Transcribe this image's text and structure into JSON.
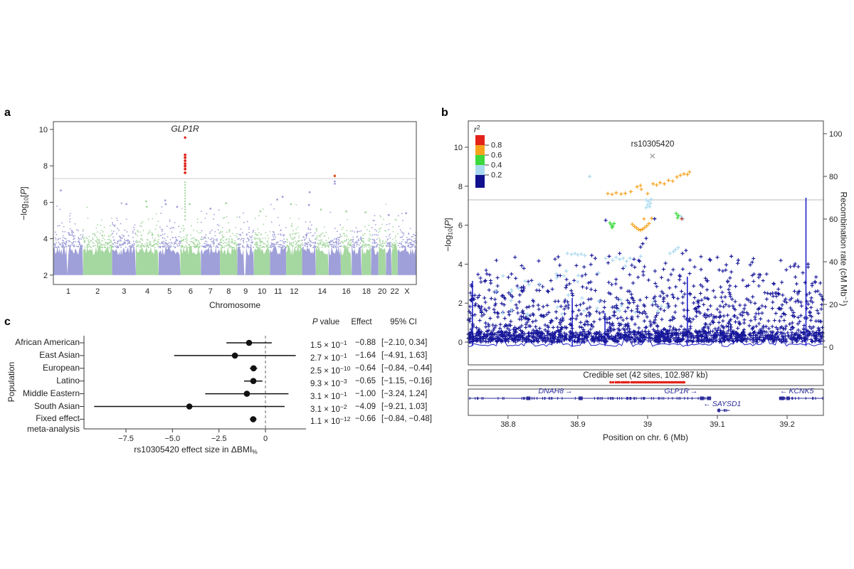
{
  "panel_letters": [
    "a",
    "b",
    "c"
  ],
  "glyphs": {
    "right": "→",
    "left": "←"
  },
  "chart_data": [
    {
      "type": "scatter",
      "panel": "a",
      "name": "manhattan-gwas",
      "xlabel": "Chromosome",
      "ylabel_parts": {
        "pre": "−log",
        "sub": "10",
        "open": "[",
        "pvar": "P",
        "close": "]"
      },
      "annotation": {
        "text": "GLP1R",
        "chr": 6,
        "frac": 0.228
      },
      "yticks": [
        2,
        4,
        6,
        8,
        10
      ],
      "ylim": [
        1.45,
        10.45
      ],
      "sig_line": 7.3,
      "colors": {
        "odd": "#9f9fd9",
        "even": "#a5d7a0",
        "red": "#e0261b",
        "red2": "#e0571f",
        "sig_line": "#cccccc",
        "axis": "#444444"
      },
      "chrom_labels": [
        "1",
        "2",
        "3",
        "4",
        "5",
        "6",
        "7",
        "8",
        "9",
        "10",
        "11",
        "12",
        "",
        "14",
        "",
        "16",
        "",
        "18",
        "",
        "20",
        "",
        "22",
        "X"
      ],
      "chrom_sizes": [
        248,
        242,
        198,
        190,
        181,
        171,
        159,
        145,
        138,
        134,
        135,
        133,
        114,
        107,
        102,
        90,
        83,
        80,
        59,
        64,
        47,
        51,
        155
      ],
      "gaps": [
        {
          "chr": 1,
          "frac": 0.47,
          "w": 0.03
        },
        {
          "chr": 9,
          "frac": 0.45,
          "w": 0.1
        },
        {
          "chr": 16,
          "frac": 0.42,
          "w": 0.05
        }
      ],
      "outliers": [
        {
          "chr": 1,
          "frac": 0.25,
          "v": 6.65
        },
        {
          "chr": 3,
          "frac": 0.6,
          "v": 5.9
        },
        {
          "chr": 4,
          "frac": 0.45,
          "v": 6.05
        },
        {
          "chr": 4,
          "frac": 0.48,
          "v": 5.75
        },
        {
          "chr": 5,
          "frac": 0.3,
          "v": 6.1
        },
        {
          "chr": 5,
          "frac": 0.33,
          "v": 5.9
        },
        {
          "chr": 5,
          "frac": 0.85,
          "v": 5.75
        },
        {
          "chr": 6,
          "frac": 0.45,
          "v": 5.9
        },
        {
          "chr": 7,
          "frac": 0.5,
          "v": 5.65
        },
        {
          "chr": 8,
          "frac": 0.35,
          "v": 5.95
        },
        {
          "chr": 10,
          "frac": 0.4,
          "v": 5.5
        },
        {
          "chr": 11,
          "frac": 0.45,
          "v": 6.15
        },
        {
          "chr": 11,
          "frac": 0.78,
          "v": 6.3
        },
        {
          "chr": 12,
          "frac": 0.3,
          "v": 5.9
        },
        {
          "chr": 13,
          "frac": 0.55,
          "v": 6.55
        },
        {
          "chr": 13,
          "frac": 0.5,
          "v": 5.85
        },
        {
          "chr": 14,
          "frac": 0.4,
          "v": 5.6
        },
        {
          "chr": 16,
          "frac": 0.5,
          "v": 5.5
        },
        {
          "chr": 18,
          "frac": 0.4,
          "v": 5.45
        },
        {
          "chr": 21,
          "frac": 0.5,
          "v": 5.3
        },
        {
          "chr": 23,
          "frac": 0.45,
          "v": 5.4
        }
      ],
      "glp1r_peak": {
        "chr": 6,
        "frac": 0.228,
        "green_column": [
          5.05,
          5.25,
          5.45,
          5.6,
          5.75,
          5.9,
          6.05,
          6.2,
          6.35,
          6.5,
          6.65,
          6.8,
          6.95,
          7.1
        ],
        "red_points": [
          7.62,
          7.82,
          7.98,
          8.12,
          8.28,
          8.45,
          8.6
        ],
        "red_top": 9.55
      },
      "chr15_hit": {
        "chr": 15,
        "frac": 0.5,
        "red": [
          7.45
        ],
        "purple": [
          7.15,
          7.02
        ]
      },
      "noise": {
        "seed": 42,
        "decay": 0.42
      }
    },
    {
      "type": "scatter",
      "panel": "b",
      "name": "locuszoom-regional",
      "xlabel": "Position on chr. 6 (Mb)",
      "ylabel_parts": {
        "pre": "−log",
        "sub": "10",
        "open": "[",
        "pvar": "P",
        "close": "]"
      },
      "ylabel_right_parts": {
        "pre": "Recombination rate (cM Mb",
        "sup": "−1",
        "post": ")"
      },
      "xlim": [
        38.743,
        39.252
      ],
      "xticks": [
        {
          "v": 38.8,
          "label": "38.8"
        },
        {
          "v": 38.9,
          "label": "38.9"
        },
        {
          "v": 39,
          "label": "39"
        },
        {
          "v": 39.1,
          "label": "39.1"
        },
        {
          "v": 39.2,
          "label": "39.2"
        }
      ],
      "yticks": [
        0,
        2,
        4,
        6,
        8,
        10
      ],
      "yticks_right": [
        0,
        20,
        40,
        60,
        80,
        100
      ],
      "sig_line": 7.3,
      "lead_snp": {
        "label": "rs10305420",
        "x": 39.007,
        "y": 9.55,
        "color": "#999999"
      },
      "legend": {
        "title_parts": {
          "base": "r",
          "sup": "2"
        },
        "entries": [
          {
            "color": "#e32219",
            "label": "0.8"
          },
          {
            "color": "#f6a21d",
            "label": "0.6"
          },
          {
            "color": "#3bd93b",
            "label": "0.4"
          },
          {
            "color": "#a9d9ee",
            "label": "0.2"
          },
          {
            "color": "#11118d",
            "label": ""
          }
        ]
      },
      "colors": {
        "navy": "#17179a",
        "lightblue": "#a9d9ee",
        "orange": "#f6a21d",
        "green": "#3bd93b",
        "red": "#c0392b",
        "recomb": "#2222cc",
        "gene": "#2b2b9b",
        "axis": "#444444"
      },
      "clusters": [
        {
          "color": "orange",
          "points": [
            [
              38.943,
              7.62
            ],
            [
              38.949,
              7.58
            ],
            [
              38.955,
              7.66
            ],
            [
              38.962,
              7.6
            ],
            [
              38.968,
              7.63
            ],
            [
              38.976,
              7.72
            ],
            [
              38.985,
              7.97
            ],
            [
              38.99,
              8.04
            ],
            [
              38.991,
              7.84
            ],
            [
              39.0,
              7.62
            ],
            [
              39.008,
              8.12
            ],
            [
              39.013,
              8.06
            ],
            [
              39.018,
              8.18
            ],
            [
              39.024,
              8.12
            ],
            [
              39.03,
              8.3
            ],
            [
              39.036,
              8.26
            ],
            [
              39.042,
              8.47
            ],
            [
              39.047,
              8.56
            ],
            [
              39.052,
              8.63
            ],
            [
              39.057,
              8.6
            ],
            [
              39.06,
              8.73
            ],
            [
              38.995,
              6.32
            ],
            [
              39.006,
              6.35
            ],
            [
              38.978,
              6.05
            ],
            [
              38.981,
              5.95
            ],
            [
              38.984,
              5.86
            ],
            [
              38.987,
              5.78
            ],
            [
              38.99,
              5.75
            ],
            [
              38.993,
              5.8
            ],
            [
              38.996,
              5.88
            ],
            [
              38.999,
              5.97
            ],
            [
              39.002,
              6.08
            ]
          ]
        },
        {
          "color": "green",
          "points": [
            [
              38.946,
              6.12
            ],
            [
              38.948,
              6.02
            ],
            [
              38.95,
              5.94
            ],
            [
              38.952,
              6.08
            ],
            [
              38.949,
              5.88
            ],
            [
              39.041,
              6.6
            ],
            [
              39.044,
              6.5
            ],
            [
              39.043,
              6.38
            ]
          ]
        },
        {
          "color": "lightblue",
          "points": [
            [
              38.917,
              8.5
            ],
            [
              38.998,
              7.3
            ],
            [
              39.001,
              7.22
            ],
            [
              39.004,
              7.12
            ],
            [
              39.0,
              7.05
            ],
            [
              39.003,
              6.95
            ],
            [
              38.998,
              6.9
            ],
            [
              39.005,
              7.32
            ],
            [
              39.048,
              6.45
            ],
            [
              39.051,
              6.32
            ],
            [
              38.885,
              4.55
            ],
            [
              38.891,
              4.5
            ],
            [
              38.896,
              4.55
            ],
            [
              38.9,
              4.48
            ],
            [
              38.905,
              4.52
            ],
            [
              38.91,
              4.45
            ],
            [
              38.94,
              4.3
            ],
            [
              38.95,
              4.2
            ],
            [
              38.955,
              4.35
            ],
            [
              38.96,
              4.25
            ],
            [
              38.965,
              4.3
            ],
            [
              38.97,
              4.15
            ],
            [
              38.975,
              4.3
            ],
            [
              38.99,
              4.4
            ],
            [
              39.032,
              4.55
            ],
            [
              39.037,
              4.65
            ],
            [
              39.04,
              4.75
            ],
            [
              39.044,
              4.85
            ],
            [
              38.805,
              2.6
            ],
            [
              38.815,
              2.75
            ],
            [
              38.83,
              2.95
            ],
            [
              38.845,
              3.0
            ],
            [
              38.87,
              3.3
            ],
            [
              38.88,
              3.4
            ],
            [
              38.9,
              3.1
            ],
            [
              38.93,
              3.55
            ],
            [
              38.968,
              3.9
            ],
            [
              39.02,
              1.85
            ],
            [
              38.96,
              1.6
            ]
          ]
        },
        {
          "color": "red",
          "points": [
            [
              39.049,
              6.33
            ]
          ]
        },
        {
          "color": "navy",
          "points": [
            [
              38.94,
              6.25
            ],
            [
              39.01,
              6.33
            ],
            [
              38.998,
              5.32
            ],
            [
              38.993,
              5.05
            ],
            [
              38.99,
              4.88
            ],
            [
              39.055,
              4.7
            ],
            [
              39.05,
              4.55
            ],
            [
              38.92,
              4.45
            ],
            [
              38.925,
              4.3
            ],
            [
              38.96,
              4.55
            ],
            [
              38.945,
              4.4
            ],
            [
              39.09,
              4.2
            ],
            [
              39.1,
              4.35
            ],
            [
              39.12,
              4.4
            ],
            [
              39.13,
              4.2
            ],
            [
              39.15,
              4.1
            ],
            [
              39.21,
              3.9
            ],
            [
              39.23,
              4.0
            ]
          ]
        }
      ],
      "recomb": {
        "spikes": [
          [
            38.749,
            31
          ],
          [
            38.892,
            23
          ],
          [
            38.939,
            16
          ],
          [
            39.057,
            33
          ],
          [
            39.227,
            70
          ]
        ],
        "bumps": [
          [
            38.79,
            6
          ],
          [
            38.83,
            4
          ],
          [
            38.87,
            8
          ],
          [
            38.91,
            5
          ],
          [
            38.97,
            7
          ],
          [
            39.0,
            4
          ],
          [
            39.1,
            8
          ],
          [
            39.13,
            5
          ],
          [
            39.17,
            4
          ],
          [
            39.19,
            7
          ]
        ]
      },
      "noise": {
        "seed": 7,
        "n_exp": 950,
        "exp_scale": 0.85,
        "n_base": 650,
        "n_mid": 240,
        "n_high": 70,
        "n_lightblue": 26
      },
      "credible": {
        "label": "Credible set (42 sites, 102.987 kb)",
        "n_sites": 42,
        "span_kb": "102.987",
        "color": "#e32219",
        "positions": [
          38.947,
          38.9505,
          38.9545,
          38.957,
          38.9595,
          38.963,
          38.9655,
          38.968,
          38.9705,
          38.973,
          38.977,
          38.9795,
          38.982,
          38.9845,
          38.987,
          38.9895,
          38.992,
          38.9945,
          38.997,
          38.9995,
          39.002,
          39.0045,
          39.007,
          39.0095,
          39.012,
          39.0145,
          39.017,
          39.0195,
          39.022,
          39.024,
          39.0265,
          39.029,
          39.0315,
          39.034,
          39.036,
          39.038,
          39.0405,
          39.043,
          39.0455,
          39.048,
          39.0505,
          39.0525
        ]
      },
      "genes": [
        {
          "name": "DNAH8",
          "strand": "+",
          "start": 38.7,
          "end": 39.028,
          "label_x": 38.868,
          "row": 0,
          "blocks": [
            [
              38.826,
              38.832
            ],
            [
              38.901,
              38.907
            ]
          ]
        },
        {
          "name": "GLP1R",
          "strand": "+",
          "start": 39.029,
          "end": 39.091,
          "label_x": 39.048,
          "row": 0,
          "blocks": [
            [
              39.075,
              39.081
            ],
            [
              39.085,
              39.091
            ]
          ]
        },
        {
          "name": "SAYSD1",
          "strand": "-",
          "start": 39.1,
          "end": 39.118,
          "label_x": 39.107,
          "row": 1,
          "blocks": [
            [
              39.101,
              39.104
            ]
          ]
        },
        {
          "name": "KCNK5",
          "strand": "-",
          "start": 39.188,
          "end": 39.252,
          "label_x": 39.214,
          "row": 0,
          "blocks": [
            [
              39.189,
              39.196
            ],
            [
              39.199,
              39.204
            ]
          ]
        }
      ]
    },
    {
      "type": "forest",
      "panel": "c",
      "name": "forest-effect-by-population",
      "ylabel": "Population",
      "xlabel_parts": {
        "pre": "rs10305420 effect size in ΔBMI",
        "sub": "%"
      },
      "xticks": [
        {
          "v": -7.5,
          "label": "−7.5"
        },
        {
          "v": -5,
          "label": "−5.0"
        },
        {
          "v": -2.5,
          "label": "−2.5"
        },
        {
          "v": 0,
          "label": "0"
        }
      ],
      "xlim": [
        -9.75,
        2.1
      ],
      "zero_line": 0,
      "headers": {
        "p_italic": "P",
        "p_rest": " value",
        "effect": "Effect",
        "ci": "95% CI"
      },
      "rows": [
        {
          "label": "African American",
          "label2": "",
          "p_mant": "1.5 × 10",
          "p_exp": "−1",
          "effect": "−0.88",
          "ci": "[−2.10, 0.34]",
          "est": -0.88,
          "lo": -2.1,
          "hi": 0.34
        },
        {
          "label": "East Asian",
          "label2": "",
          "p_mant": "2.7 × 10",
          "p_exp": "−1",
          "effect": "−1.64",
          "ci": "[−4.91, 1.63]",
          "est": -1.64,
          "lo": -4.91,
          "hi": 1.63
        },
        {
          "label": "European",
          "label2": "",
          "p_mant": "2.5 × 10",
          "p_exp": "−10",
          "effect": "−0.64",
          "ci": "[−0.84, −0.44]",
          "est": -0.64,
          "lo": -0.84,
          "hi": -0.44
        },
        {
          "label": "Latino",
          "label2": "",
          "p_mant": "9.3 × 10",
          "p_exp": "−3",
          "effect": "−0.65",
          "ci": "[−1.15, −0.16]",
          "est": -0.65,
          "lo": -1.15,
          "hi": -0.16
        },
        {
          "label": "Middle Eastern",
          "label2": "",
          "p_mant": "3.1 × 10",
          "p_exp": "−1",
          "effect": "−1.00",
          "ci": "[−3.24, 1.24]",
          "est": -1.0,
          "lo": -3.24,
          "hi": 1.24
        },
        {
          "label": "South Asian",
          "label2": "",
          "p_mant": "3.1 × 10",
          "p_exp": "−2",
          "effect": "−4.09",
          "ci": "[−9.21, 1.03]",
          "est": -4.09,
          "lo": -9.21,
          "hi": 1.03
        },
        {
          "label": "Fixed effect",
          "label2": "meta-analysis",
          "p_mant": "1.1 × 10",
          "p_exp": "−12",
          "effect": "−0.66",
          "ci": "[−0.84, −0.48]",
          "est": -0.66,
          "lo": -0.84,
          "hi": -0.48
        }
      ]
    }
  ]
}
